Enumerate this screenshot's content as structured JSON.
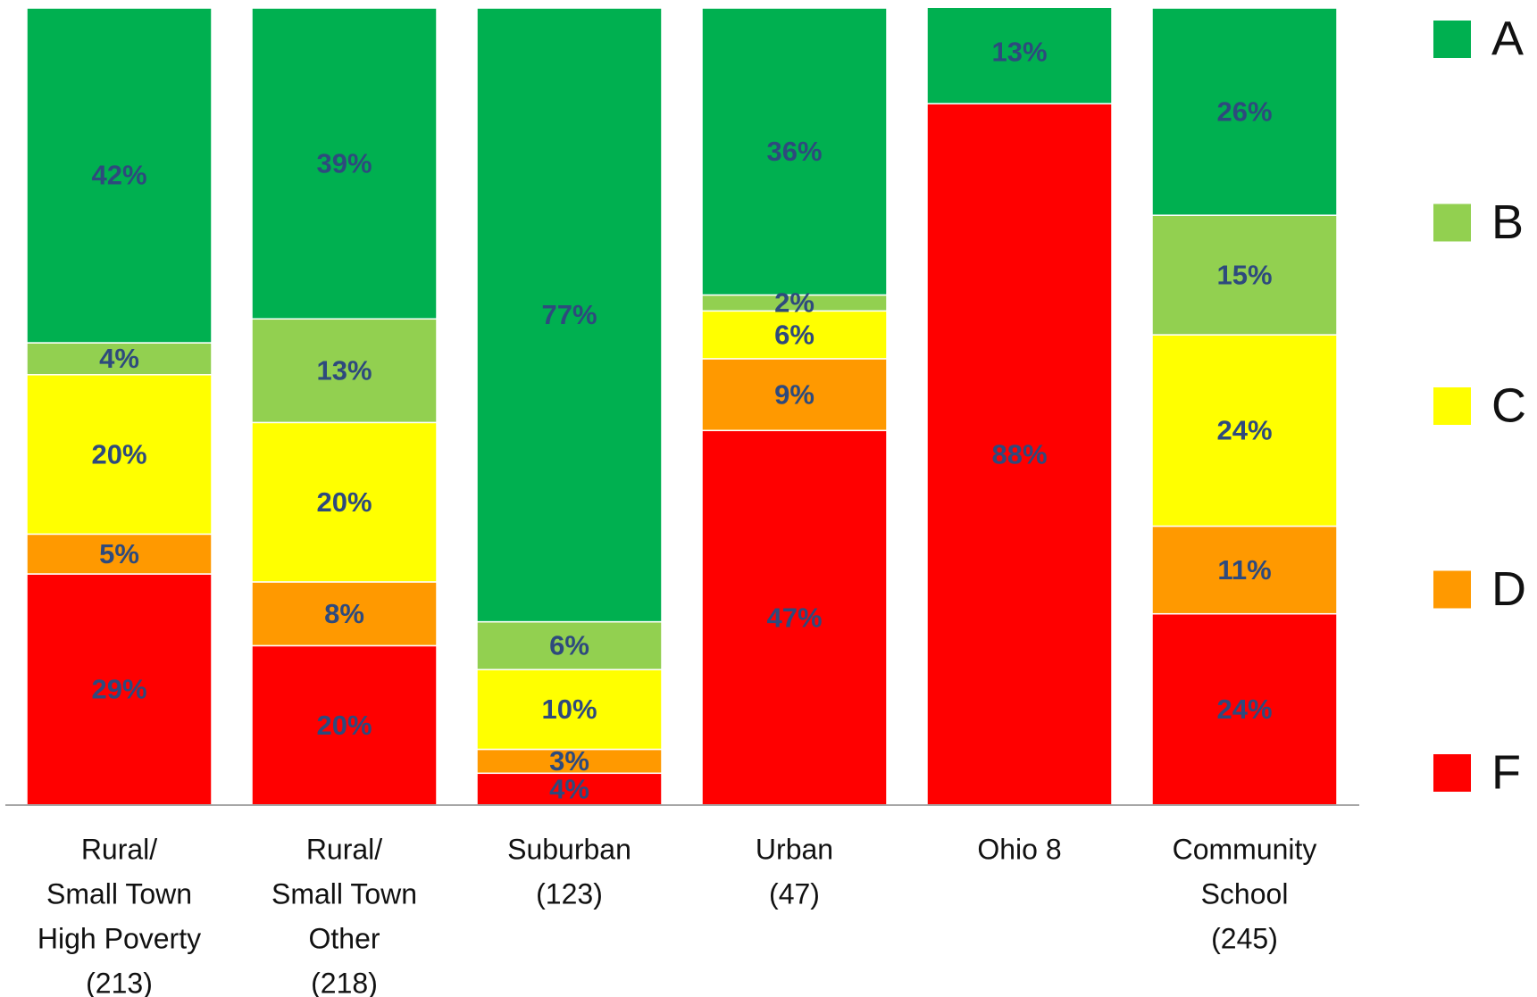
{
  "chart_data": {
    "type": "stacked_bar",
    "categories": [
      [
        "Rural/",
        "Small Town",
        "High Poverty",
        "(213)"
      ],
      [
        "Rural/",
        "Small Town",
        "Other",
        "(218)"
      ],
      [
        "Suburban",
        "(123)"
      ],
      [
        "Urban",
        "(47)"
      ],
      [
        "Ohio 8"
      ],
      [
        "Community",
        "School",
        "(245)"
      ]
    ],
    "series": [
      {
        "name": "A",
        "color": "#00b050",
        "values": [
          42,
          39,
          77,
          36,
          13,
          26
        ],
        "value_labels": [
          "42%",
          "39%",
          "77%",
          "36%",
          "13%",
          "26%"
        ]
      },
      {
        "name": "B",
        "color": "#92d050",
        "values": [
          4,
          13,
          6,
          2,
          null,
          15
        ],
        "value_labels": [
          "4%",
          "13%",
          "6%",
          "2%",
          null,
          "15%"
        ]
      },
      {
        "name": "C",
        "color": "#ffff00",
        "values": [
          20,
          20,
          10,
          6,
          null,
          24
        ],
        "value_labels": [
          "20%",
          "20%",
          "10%",
          "6%",
          null,
          "24%"
        ]
      },
      {
        "name": "D",
        "color": "#ff9900",
        "values": [
          5,
          8,
          3,
          9,
          null,
          11
        ],
        "value_labels": [
          "5%",
          "8%",
          "3%",
          "9%",
          null,
          "11%"
        ]
      },
      {
        "name": "F",
        "color": "#ff0000",
        "values": [
          29,
          20,
          4,
          47,
          88,
          24
        ],
        "value_labels": [
          "29%",
          "20%",
          "4%",
          "47%",
          "88%",
          "24%"
        ]
      }
    ],
    "ylim": [
      0,
      100
    ],
    "legend": "right"
  }
}
